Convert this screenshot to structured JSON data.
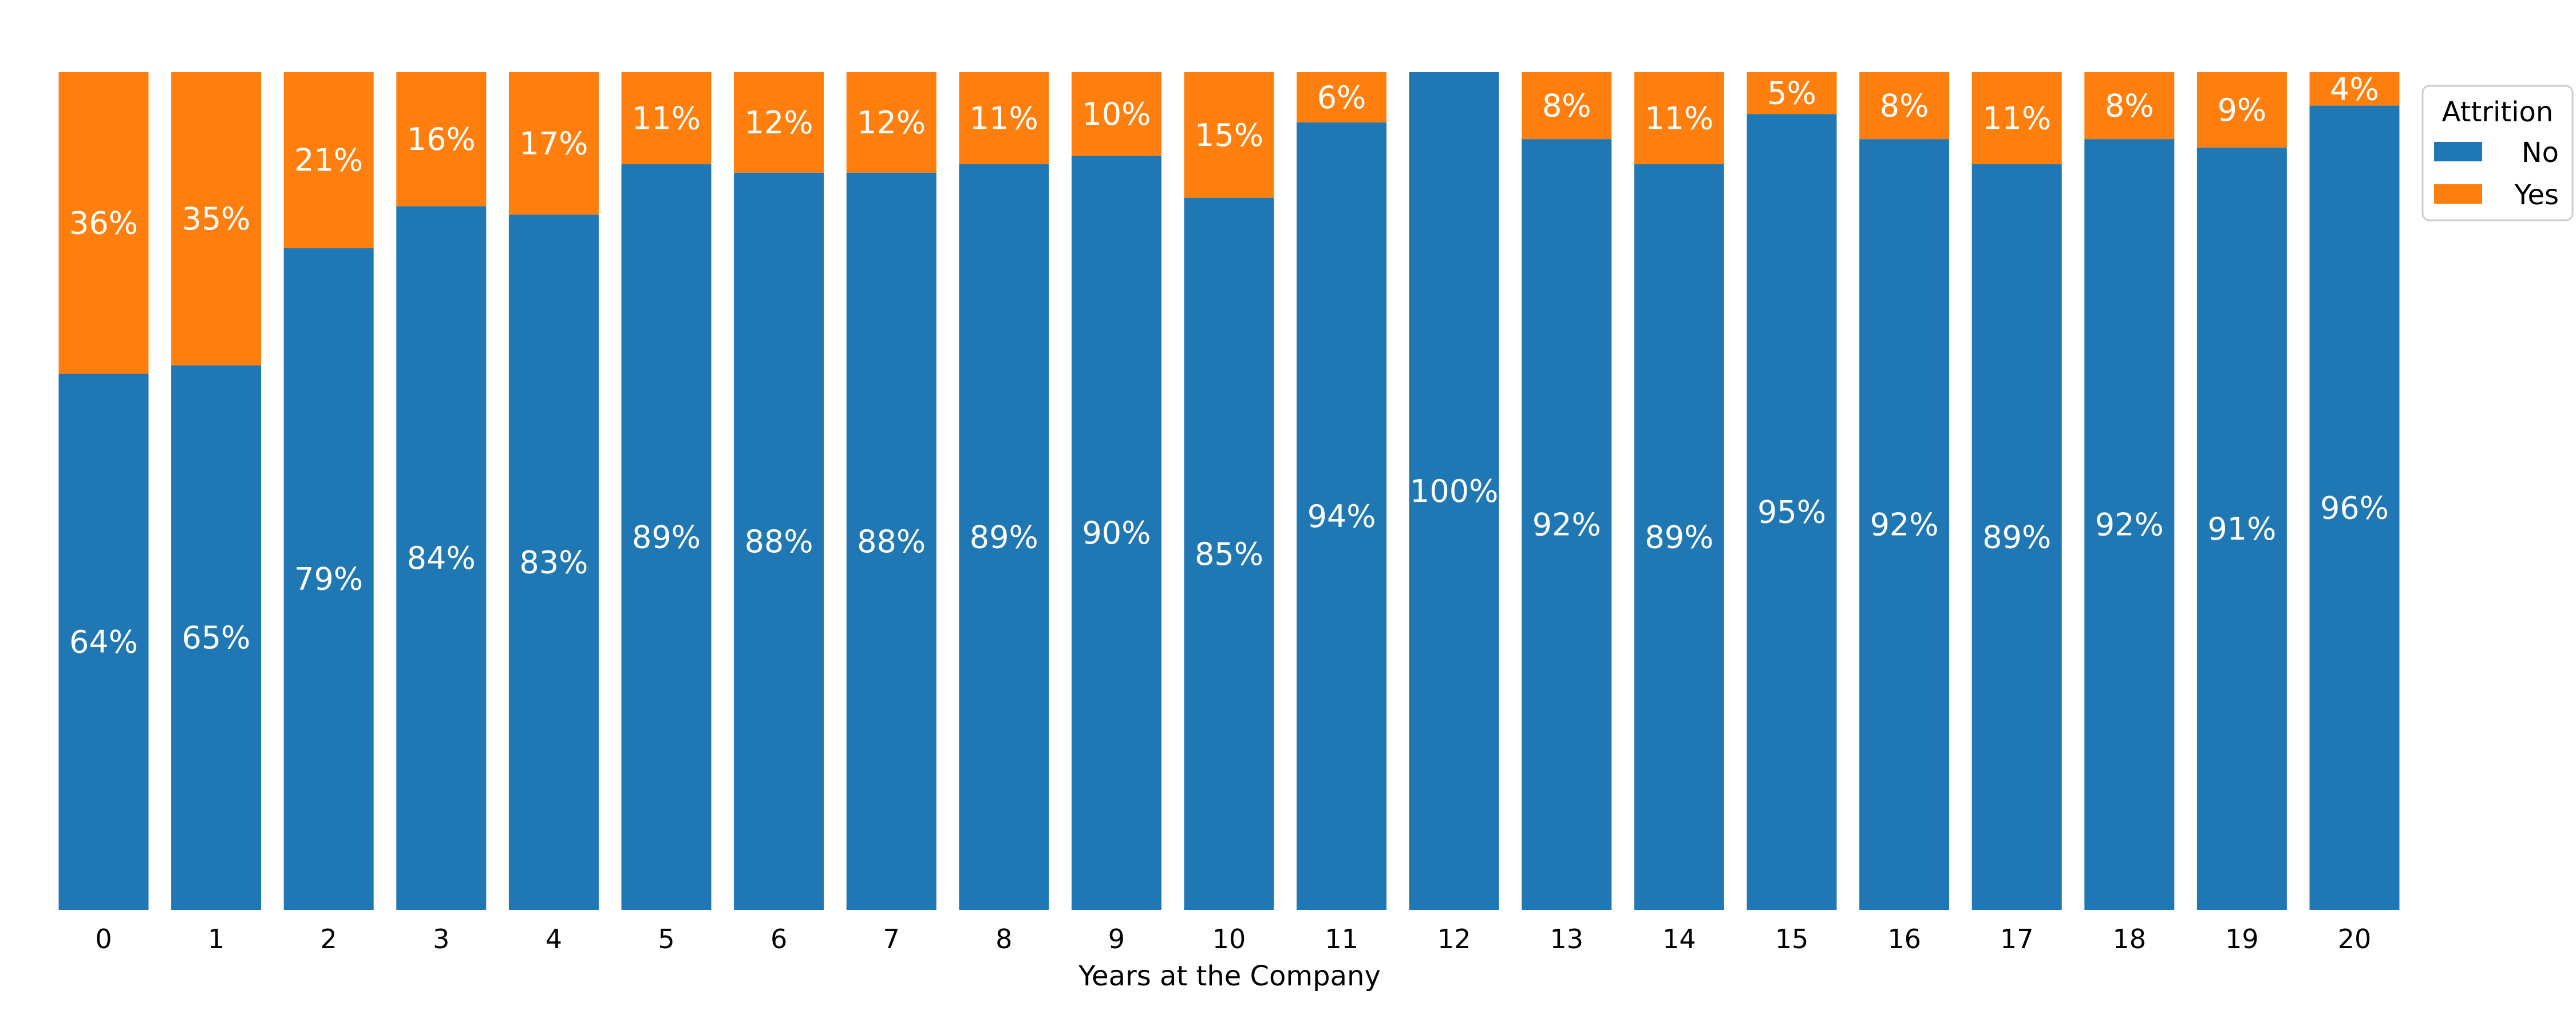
{
  "chart_data": {
    "type": "bar",
    "stacked": true,
    "normalized": true,
    "xlabel": "Years at the Company",
    "ylabel": "",
    "ylim": [
      0,
      100
    ],
    "grid": false,
    "categories": [
      "0",
      "1",
      "2",
      "3",
      "4",
      "5",
      "6",
      "7",
      "8",
      "9",
      "10",
      "11",
      "12",
      "13",
      "14",
      "15",
      "16",
      "17",
      "18",
      "19",
      "20"
    ],
    "series": [
      {
        "name": "No",
        "color": "#1f77b4",
        "values": [
          64,
          65,
          79,
          84,
          83,
          89,
          88,
          88,
          89,
          90,
          85,
          94,
          100,
          92,
          89,
          95,
          92,
          89,
          92,
          91,
          96
        ],
        "labels": [
          "64%",
          "65%",
          "79%",
          "84%",
          "83%",
          "89%",
          "88%",
          "88%",
          "89%",
          "90%",
          "85%",
          "94%",
          "100%",
          "92%",
          "89%",
          "95%",
          "92%",
          "89%",
          "92%",
          "91%",
          "96%"
        ]
      },
      {
        "name": "Yes",
        "color": "#ff7f0e",
        "values": [
          36,
          35,
          21,
          16,
          17,
          11,
          12,
          12,
          11,
          10,
          15,
          6,
          0,
          8,
          11,
          5,
          8,
          11,
          8,
          9,
          4
        ],
        "labels": [
          "36%",
          "35%",
          "21%",
          "16%",
          "17%",
          "11%",
          "12%",
          "12%",
          "11%",
          "10%",
          "15%",
          "6%",
          "",
          "8%",
          "11%",
          "5%",
          "8%",
          "11%",
          "8%",
          "9%",
          "4%"
        ]
      }
    ],
    "legend": {
      "title": "Attrition",
      "placement": "top-right"
    }
  }
}
